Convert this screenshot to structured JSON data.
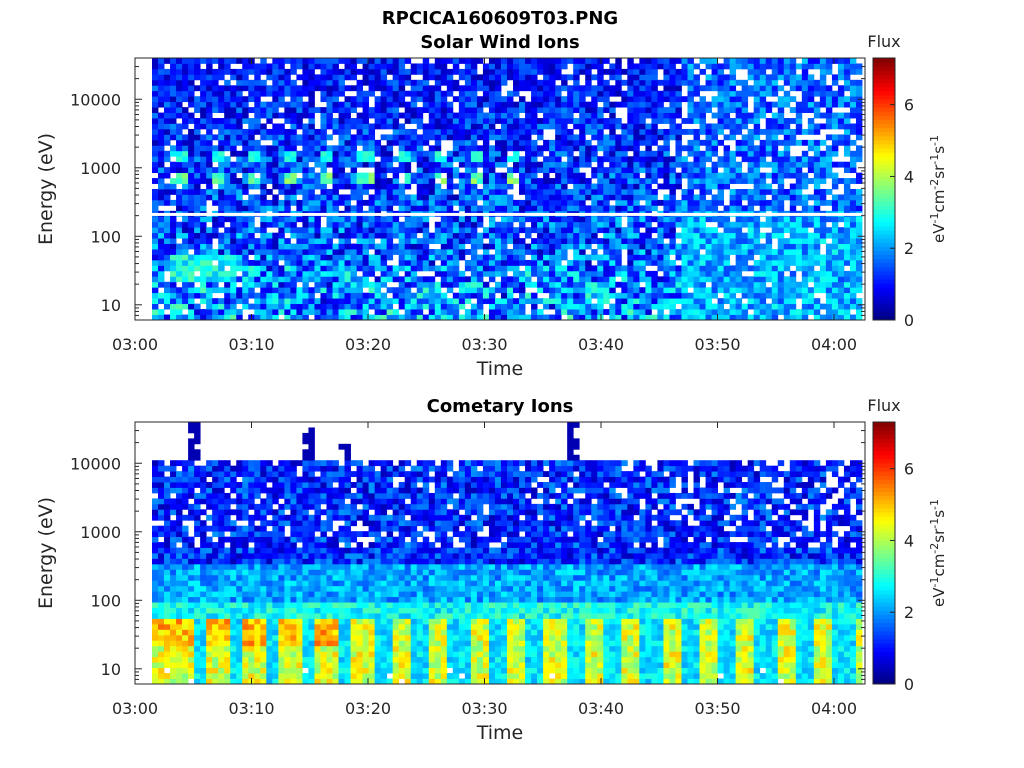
{
  "figure": {
    "title": "RPCICA160609T03.PNG"
  },
  "colormap": "jet",
  "chart_data": [
    {
      "type": "heatmap",
      "title": "Solar Wind Ions",
      "xlabel": "Time",
      "ylabel": "Energy (eV)",
      "x_range": [
        "03:00",
        "04:02"
      ],
      "xticks": [
        "03:00",
        "03:10",
        "03:20",
        "03:30",
        "03:40",
        "03:50",
        "04:00"
      ],
      "y_scale": "log",
      "y_range_eV": [
        6,
        40000
      ],
      "yticks": [
        "10",
        "100",
        "1000",
        "10000"
      ],
      "colorbar": {
        "title": "Flux",
        "unit": "eV-1cm-2sr-1s-1",
        "range": [
          0,
          7.3
        ],
        "ticks": [
          "0",
          "2",
          "4",
          "6"
        ]
      },
      "features": [
        {
          "energy_eV": 700,
          "level": 3.2,
          "note": "periodic solar wind proton peaks, 03:03-03:32"
        },
        {
          "energy_eV": 1400,
          "level": 2.8,
          "note": "alpha particle peaks"
        },
        {
          "energy_eV": 200,
          "level": 0,
          "note": "data gap line"
        },
        {
          "energy_eV": 35,
          "level": 3.0,
          "note": "low-energy patches 03:03-03:08"
        }
      ]
    },
    {
      "type": "heatmap",
      "title": "Cometary Ions",
      "xlabel": "Time",
      "ylabel": "Energy (eV)",
      "x_range": [
        "03:00",
        "04:02"
      ],
      "xticks": [
        "03:00",
        "03:10",
        "03:20",
        "03:30",
        "03:40",
        "03:50",
        "04:00"
      ],
      "y_scale": "log",
      "y_range_eV": [
        6,
        40000
      ],
      "yticks": [
        "10",
        "100",
        "1000",
        "10000"
      ],
      "colorbar": {
        "title": "Flux",
        "unit": "eV-1cm-2sr-1s-1",
        "range": [
          0,
          7.3
        ],
        "ticks": [
          "0",
          "2",
          "4",
          "6"
        ]
      },
      "features": [
        {
          "energy_eV": 30,
          "level": 5.0,
          "note": "intense low-energy cometary ions 03:02-03:18"
        },
        {
          "energy_eV": 15,
          "level": 4.5,
          "note": "periodic pulses ~3 min, 03:18-04:02"
        },
        {
          "energy_eV": 11000,
          "level": 0.2,
          "note": "upper energy cutoff"
        }
      ]
    }
  ]
}
